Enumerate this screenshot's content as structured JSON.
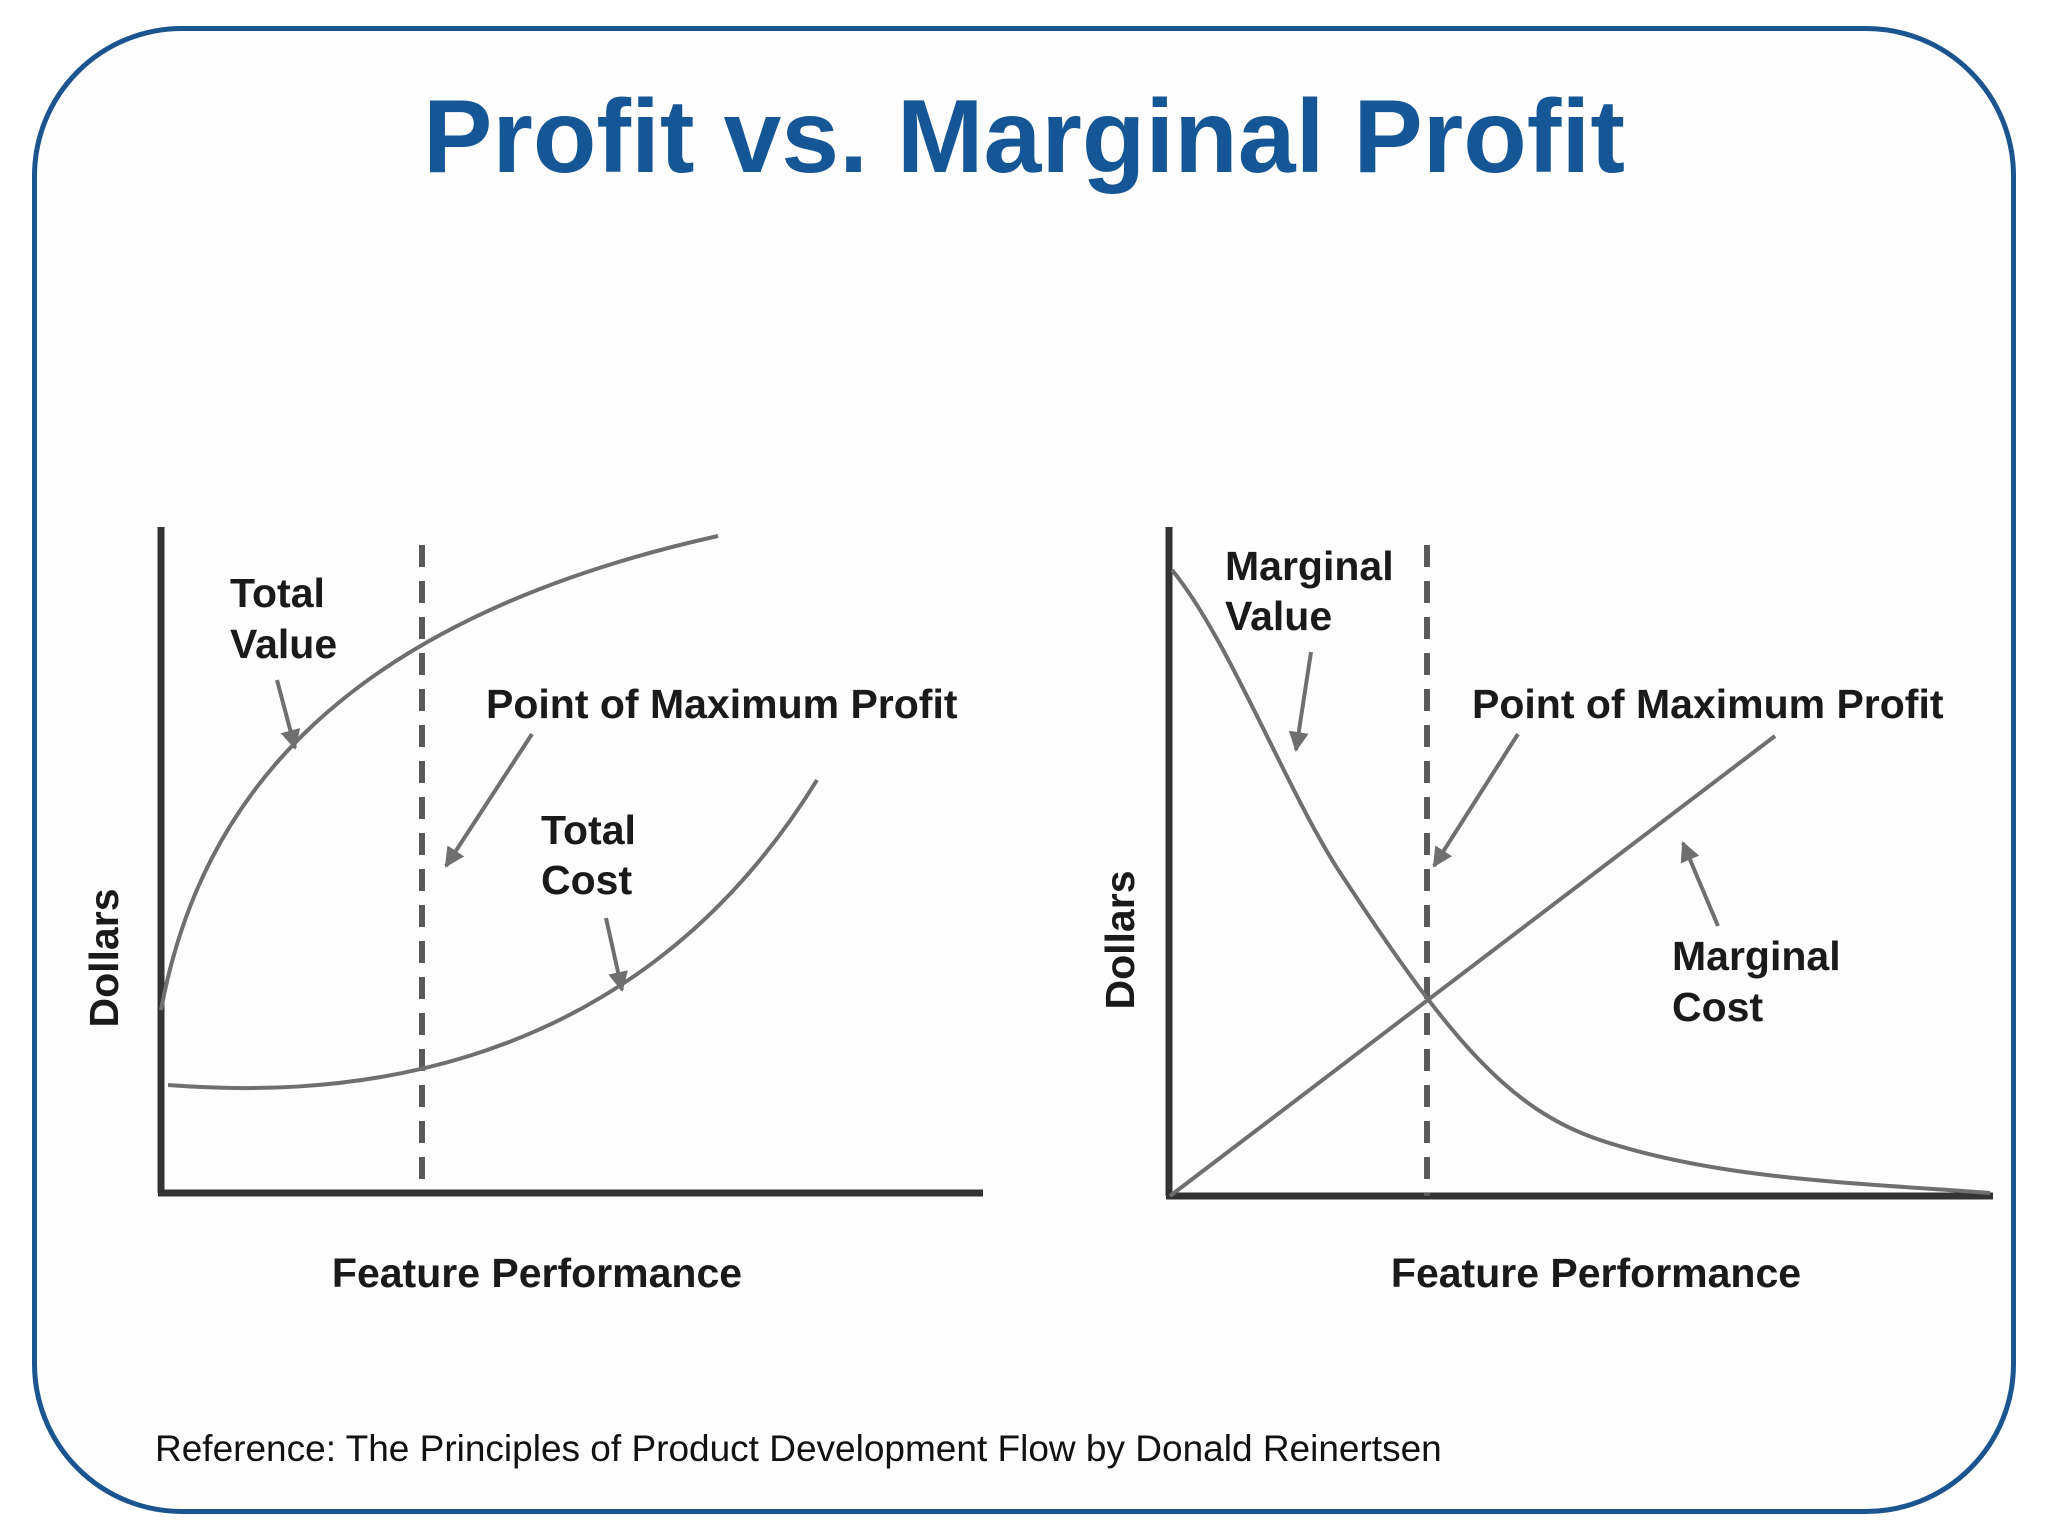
{
  "title": "Profit vs. Marginal Profit",
  "reference": "Reference: The Principles of Product Development Flow by Donald Reinertsen",
  "colors": {
    "title": "#155796",
    "border": "#1a5590",
    "curves": "#6f6f6f",
    "axes": "#333333"
  },
  "left_chart": {
    "ylabel": "Dollars",
    "xlabel": "Feature Performance",
    "labels": {
      "total_value": [
        "Total",
        "Value"
      ],
      "point_max_profit": "Point of Maximum Profit",
      "total_cost": [
        "Total",
        "Cost"
      ]
    }
  },
  "right_chart": {
    "ylabel": "Dollars",
    "xlabel": "Feature Performance",
    "labels": {
      "marginal_value": [
        "Marginal",
        "Value"
      ],
      "point_max_profit": "Point of Maximum Profit",
      "marginal_cost": [
        "Marginal",
        "Cost"
      ]
    }
  }
}
